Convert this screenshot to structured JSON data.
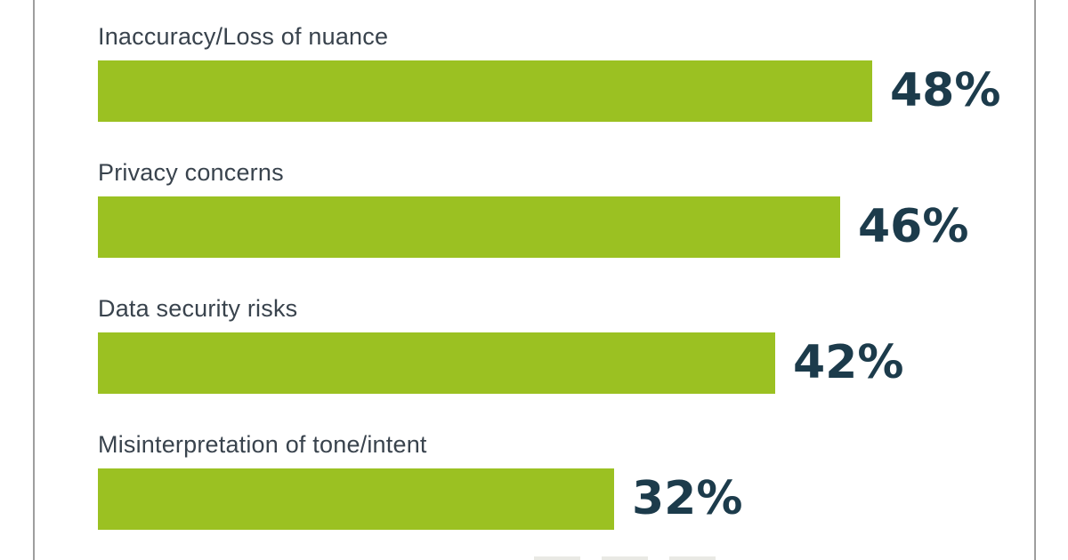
{
  "chart_data": {
    "type": "bar",
    "orientation": "horizontal",
    "title": "",
    "categories": [
      "Inaccuracy/Loss of nuance",
      "Privacy concerns",
      "Data security risks",
      "Misinterpretation of tone/intent"
    ],
    "values": [
      48,
      46,
      42,
      32
    ],
    "value_labels": [
      "48%",
      "46%",
      "42%",
      "32%"
    ],
    "xlabel": "",
    "ylabel": "",
    "xlim": [
      0,
      55
    ],
    "grid": false,
    "legend": false,
    "bar_color": "#9bc122",
    "value_label_color": "#1c3b4b",
    "category_label_color": "#39434d"
  },
  "frame": {
    "background_color": "#ffffff",
    "side_border_color": "#9e9e9e"
  }
}
